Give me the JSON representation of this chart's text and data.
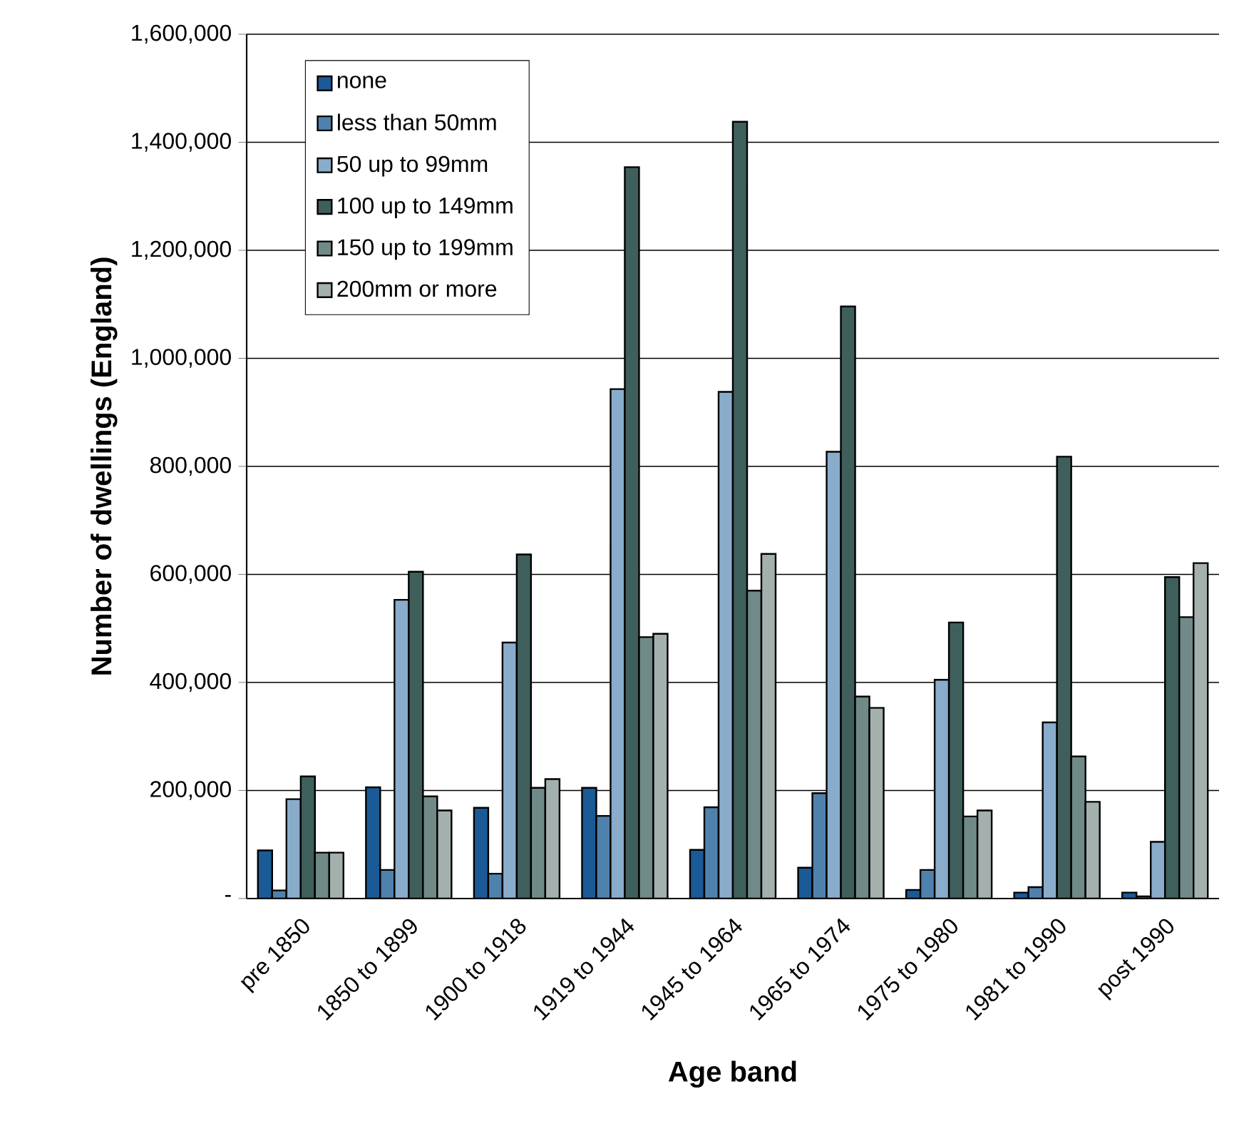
{
  "chart_data": {
    "type": "bar",
    "xlabel": "Age band",
    "ylabel": "Number of dwellings (England)",
    "categories": [
      "pre 1850",
      "1850 to 1899",
      "1900 to 1918",
      "1919 to 1944",
      "1945 to 1964",
      "1965 to 1974",
      "1975 to 1980",
      "1981 to 1990",
      "post 1990"
    ],
    "series": [
      {
        "name": "none",
        "color": "#1a5a96",
        "values": [
          89000,
          206000,
          168000,
          205000,
          90000,
          57000,
          16000,
          11000,
          11000
        ]
      },
      {
        "name": "less than 50mm",
        "color": "#4f81ad",
        "values": [
          15000,
          53000,
          46000,
          153000,
          169000,
          195000,
          53000,
          21000,
          4000
        ]
      },
      {
        "name": "50 up to 99mm",
        "color": "#8aaccb",
        "values": [
          184000,
          553000,
          474000,
          943000,
          938000,
          827000,
          405000,
          326000,
          105000
        ]
      },
      {
        "name": "100 up to 149mm",
        "color": "#3f5f5c",
        "values": [
          226000,
          605000,
          637000,
          1354000,
          1438000,
          1096000,
          511000,
          818000,
          595000
        ]
      },
      {
        "name": "150 up to 199mm",
        "color": "#708a88",
        "values": [
          85000,
          189000,
          205000,
          484000,
          570000,
          374000,
          152000,
          263000,
          521000
        ]
      },
      {
        "name": "200mm or more",
        "color": "#a3b0ae",
        "values": [
          85000,
          163000,
          221000,
          490000,
          638000,
          353000,
          163000,
          179000,
          621000
        ]
      }
    ],
    "ylim": [
      0,
      1600000
    ],
    "yticks": [
      {
        "value": 0,
        "label": "-"
      },
      {
        "value": 200000,
        "label": "200,000"
      },
      {
        "value": 400000,
        "label": "400,000"
      },
      {
        "value": 600000,
        "label": "600,000"
      },
      {
        "value": 800000,
        "label": "800,000"
      },
      {
        "value": 1000000,
        "label": "1,000,000"
      },
      {
        "value": 1200000,
        "label": "1,200,000"
      },
      {
        "value": 1400000,
        "label": "1,400,000"
      },
      {
        "value": 1600000,
        "label": "1,600,000"
      }
    ],
    "grid": "y",
    "legend": "top left"
  }
}
